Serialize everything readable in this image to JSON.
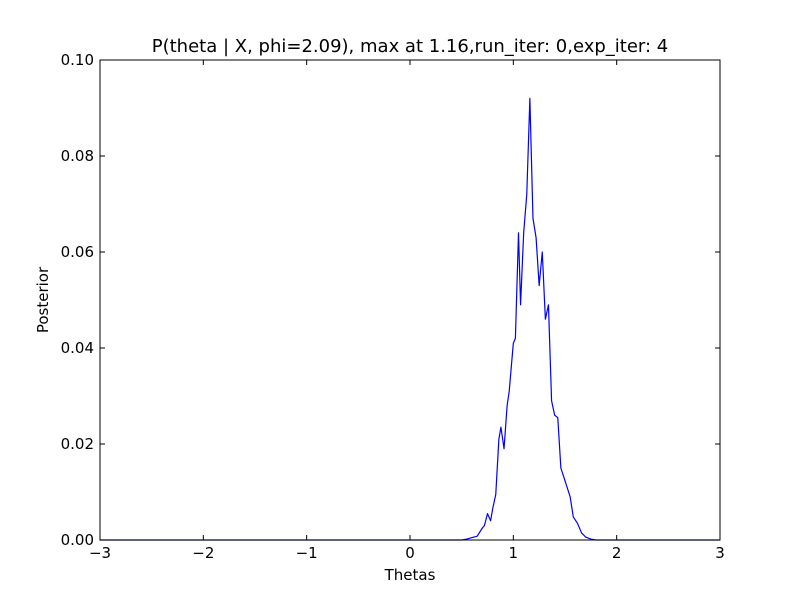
{
  "chart_data": {
    "type": "line",
    "title": "P(theta | X, phi=2.09), max at 1.16,run_iter: 0,exp_iter: 4",
    "xlabel": "Thetas",
    "ylabel": "Posterior",
    "xlim": [
      -3,
      3
    ],
    "ylim": [
      0,
      0.1
    ],
    "grid": false,
    "xticks": [
      -3,
      -2,
      -1,
      0,
      1,
      2,
      3
    ],
    "xtick_labels": [
      "−3",
      "−2",
      "−1",
      "0",
      "1",
      "2",
      "3"
    ],
    "yticks": [
      0,
      0.02,
      0.04,
      0.06,
      0.08,
      0.1
    ],
    "ytick_labels": [
      "0.00",
      "0.02",
      "0.04",
      "0.06",
      "0.08",
      "0.10"
    ],
    "series": [
      {
        "color": "#0000ff",
        "x": [
          -3.0,
          0.5,
          0.55,
          0.6,
          0.65,
          0.7,
          0.72,
          0.75,
          0.78,
          0.8,
          0.83,
          0.86,
          0.88,
          0.91,
          0.94,
          0.96,
          1.0,
          1.02,
          1.05,
          1.07,
          1.1,
          1.13,
          1.16,
          1.19,
          1.22,
          1.25,
          1.28,
          1.31,
          1.34,
          1.37,
          1.4,
          1.43,
          1.46,
          1.49,
          1.52,
          1.55,
          1.58,
          1.62,
          1.66,
          1.7,
          1.75,
          1.8,
          3.0
        ],
        "y": [
          0.0,
          0.0,
          0.0002,
          0.0005,
          0.0008,
          0.0025,
          0.003,
          0.0055,
          0.004,
          0.0065,
          0.0095,
          0.021,
          0.0235,
          0.019,
          0.028,
          0.031,
          0.041,
          0.042,
          0.064,
          0.049,
          0.064,
          0.072,
          0.092,
          0.067,
          0.063,
          0.053,
          0.06,
          0.046,
          0.049,
          0.029,
          0.026,
          0.0255,
          0.015,
          0.013,
          0.011,
          0.009,
          0.0048,
          0.0035,
          0.0015,
          0.0006,
          0.0002,
          0.0,
          0.0
        ]
      }
    ]
  }
}
